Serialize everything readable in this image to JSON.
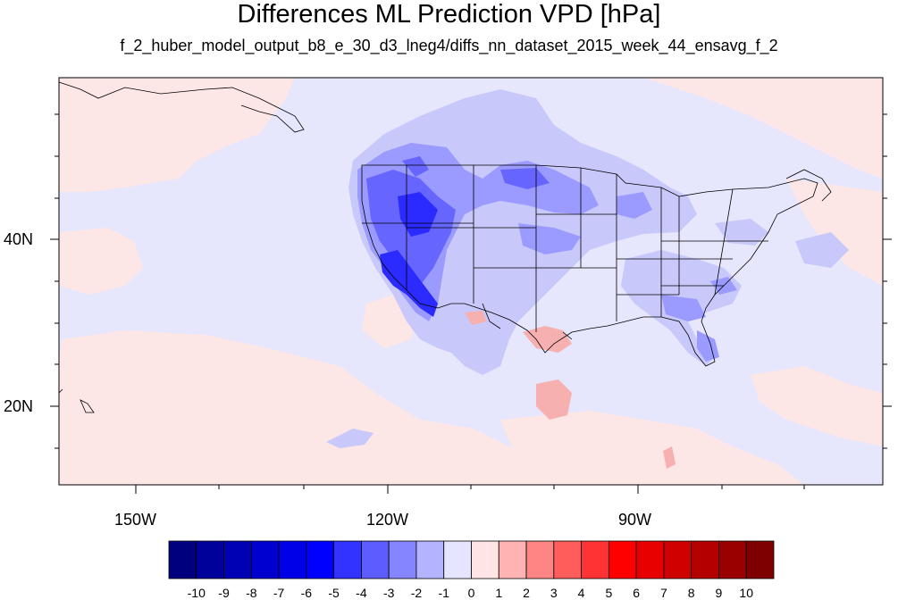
{
  "title": "Differences ML Prediction VPD [hPa]",
  "subtitle": "f_2_huber_model_output_b8_e_30_d3_lneg4/diffs_nn_dataset_2015_week_44_ensavg_f_2",
  "lat_labels": [
    "40N",
    "20N"
  ],
  "lon_labels": [
    "150W",
    "120W",
    "90W"
  ],
  "colorbar": {
    "labels": [
      "-10",
      "-9",
      "-8",
      "-7",
      "-6",
      "-5",
      "-4",
      "-3",
      "-2",
      "-1",
      "0",
      "1",
      "2",
      "3",
      "4",
      "5",
      "6",
      "7",
      "8",
      "9",
      "10"
    ],
    "colors": [
      "#00007f",
      "#00009a",
      "#0000b5",
      "#0000cf",
      "#0000e8",
      "#0000ff",
      "#3333ff",
      "#5c5cff",
      "#8585ff",
      "#b3b3ff",
      "#e5e5ff",
      "#ffe5e5",
      "#ffb3b3",
      "#ff8585",
      "#ff5c5c",
      "#ff3333",
      "#ff0000",
      "#e80000",
      "#cf0000",
      "#b50000",
      "#9a0000",
      "#7f0000"
    ]
  },
  "map_colors": {
    "background_neg": "#e6e6fc",
    "background_pos": "#fde6e6"
  }
}
